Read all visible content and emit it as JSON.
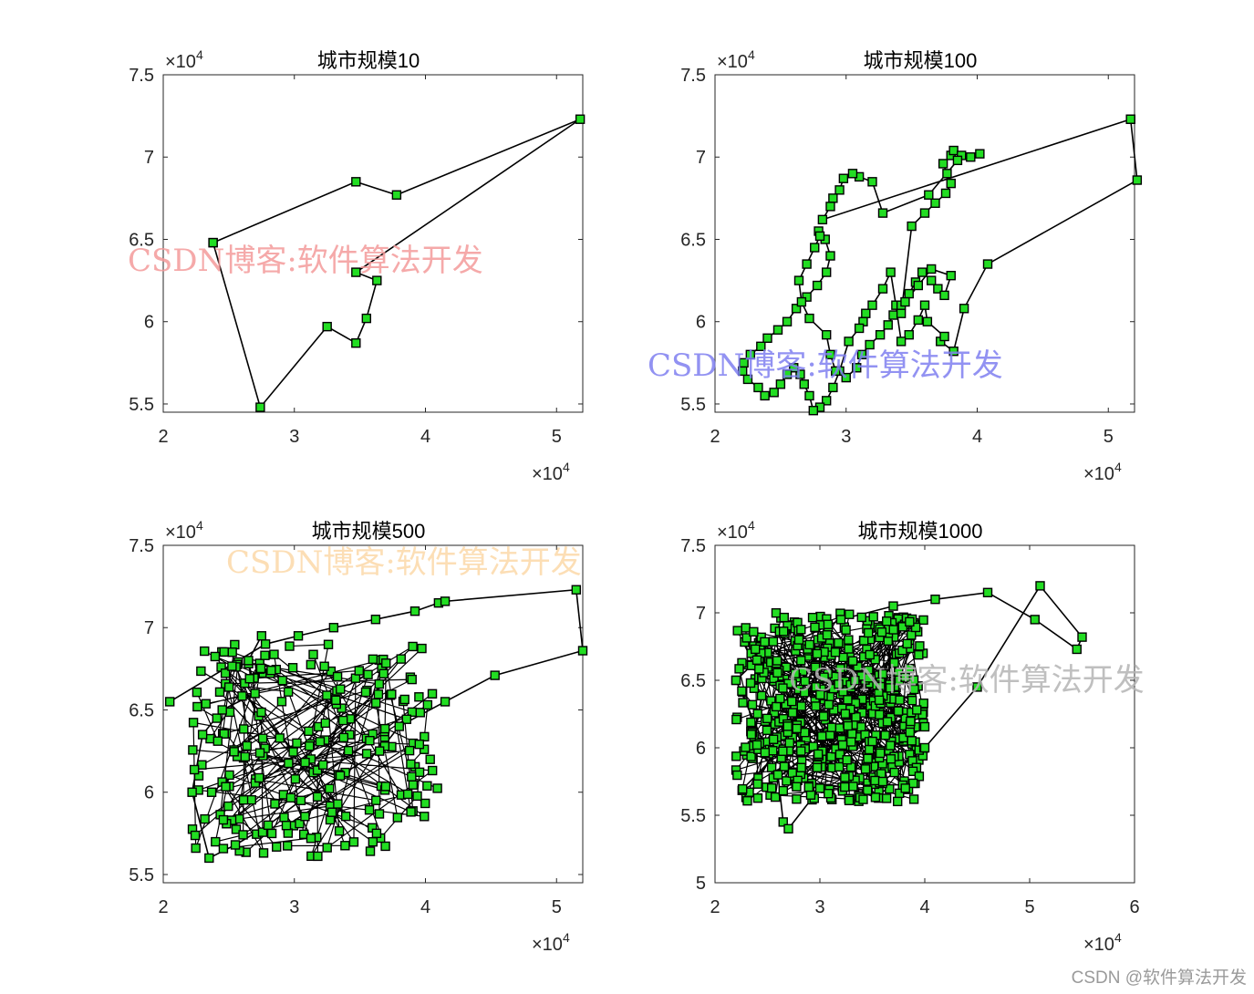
{
  "chart_data": [
    {
      "type": "line",
      "title": "城市规模10",
      "xlim": [
        2,
        5.2
      ],
      "ylim": [
        5.45,
        7.5
      ],
      "xticks": [
        "2",
        "3",
        "4",
        "5"
      ],
      "xtick_values": [
        2,
        3,
        4,
        5
      ],
      "yticks": [
        "5.5",
        "6",
        "6.5",
        "7",
        "7.5"
      ],
      "ytick_values": [
        5.5,
        6,
        6.5,
        7,
        7.5
      ],
      "x_exponent": "×10",
      "y_exponent": "×10",
      "exponent_power": "4",
      "marker": "square",
      "marker_color": "#22dd22",
      "line_color": "#000000",
      "route_x": [
        2.38,
        3.47,
        3.78,
        5.18,
        3.47,
        3.63,
        3.55,
        3.47,
        3.25,
        2.74,
        2.38
      ],
      "route_y": [
        6.48,
        6.85,
        6.77,
        7.23,
        6.3,
        6.25,
        6.02,
        5.87,
        5.97,
        5.48,
        6.48
      ],
      "watermark": {
        "text": "CSDN博客:软件算法开发",
        "color": "#f39a9a"
      }
    },
    {
      "type": "line",
      "title": "城市规模100",
      "xlim": [
        2,
        5.2
      ],
      "ylim": [
        5.45,
        7.5
      ],
      "xticks": [
        "2",
        "3",
        "4",
        "5"
      ],
      "xtick_values": [
        2,
        3,
        4,
        5
      ],
      "yticks": [
        "5.5",
        "6",
        "6.5",
        "7",
        "7.5"
      ],
      "ytick_values": [
        5.5,
        6,
        6.5,
        7,
        7.5
      ],
      "x_exponent": "×10",
      "y_exponent": "×10",
      "exponent_power": "4",
      "marker": "square",
      "marker_color": "#22dd22",
      "line_color": "#000000",
      "route_x": [
        5.17,
        5.22,
        4.08,
        3.9,
        3.82,
        3.72,
        3.75,
        3.62,
        3.6,
        3.55,
        3.48,
        3.42,
        3.38,
        3.34,
        3.28,
        3.2,
        3.15,
        3.13,
        3.1,
        3.02,
        2.95,
        2.9,
        2.85,
        2.8,
        2.75,
        2.72,
        2.68,
        2.65,
        2.6,
        2.55,
        2.5,
        2.45,
        2.38,
        2.33,
        2.25,
        2.21,
        2.22,
        2.27,
        2.35,
        2.4,
        2.48,
        2.55,
        2.62,
        2.7,
        2.78,
        2.85,
        2.88,
        2.84,
        2.79,
        2.8,
        2.76,
        2.7,
        2.64,
        2.66,
        2.72,
        2.85,
        2.88,
        2.92,
        3.0,
        3.08,
        3.12,
        3.18,
        3.26,
        3.32,
        3.36,
        3.42,
        3.48,
        3.53,
        3.58,
        3.65,
        3.7,
        3.75,
        3.8,
        3.65,
        3.55,
        3.45,
        3.42,
        3.5,
        3.6,
        3.68,
        3.76,
        3.8,
        3.77,
        3.74,
        3.8,
        3.82,
        3.88,
        3.95,
        4.02,
        3.85,
        3.63,
        3.28,
        3.2,
        3.1,
        3.05,
        2.98,
        2.95,
        2.9,
        2.88,
        2.82,
        5.17
      ],
      "route_y": [
        7.23,
        6.86,
        6.35,
        6.08,
        5.82,
        5.88,
        5.91,
        6.0,
        6.1,
        6.01,
        5.92,
        5.88,
        6.1,
        6.3,
        6.2,
        6.1,
        6.05,
        6.0,
        5.96,
        5.88,
        5.7,
        5.6,
        5.52,
        5.48,
        5.46,
        5.55,
        5.62,
        5.68,
        5.72,
        5.68,
        5.62,
        5.57,
        5.55,
        5.6,
        5.65,
        5.7,
        5.75,
        5.8,
        5.85,
        5.9,
        5.95,
        6.0,
        6.08,
        6.15,
        6.22,
        6.3,
        6.4,
        6.5,
        6.55,
        6.52,
        6.45,
        6.35,
        6.25,
        6.12,
        6.02,
        5.92,
        5.8,
        5.7,
        5.66,
        5.72,
        5.8,
        5.86,
        5.92,
        5.98,
        6.04,
        6.1,
        6.17,
        6.24,
        6.3,
        6.25,
        6.2,
        6.16,
        6.28,
        6.32,
        6.22,
        6.12,
        6.05,
        6.58,
        6.66,
        6.72,
        6.78,
        6.84,
        6.9,
        6.96,
        7.01,
        7.04,
        7.01,
        7.0,
        7.02,
        6.98,
        6.77,
        6.66,
        6.85,
        6.88,
        6.9,
        6.87,
        6.8,
        6.75,
        6.7,
        6.62,
        7.23
      ],
      "watermark": {
        "text": "CSDN博客:软件算法开发",
        "color": "#7f7ff0"
      }
    },
    {
      "type": "line",
      "title": "城市规模500",
      "xlim": [
        2,
        5.2
      ],
      "ylim": [
        5.45,
        7.5
      ],
      "xticks": [
        "2",
        "3",
        "4",
        "5"
      ],
      "xtick_values": [
        2,
        3,
        4,
        5
      ],
      "yticks": [
        "5.5",
        "6",
        "6.5",
        "7",
        "7.5"
      ],
      "ytick_values": [
        5.5,
        6,
        6.5,
        7,
        7.5
      ],
      "x_exponent": "×10",
      "y_exponent": "×10",
      "exponent_power": "4",
      "marker": "square",
      "marker_color": "#22dd22",
      "line_color": "#000000",
      "route_x": [
        2.05,
        2.78,
        3.03,
        3.3,
        3.62,
        3.92,
        4.1,
        4.15,
        5.15,
        5.2,
        4.53,
        4.15,
        3.8,
        3.65,
        3.35,
        3.05,
        2.8,
        2.55,
        2.35,
        2.22,
        2.3,
        2.45,
        2.7,
        2.65,
        2.75
      ],
      "route_y": [
        6.55,
        6.9,
        6.95,
        7.0,
        7.05,
        7.1,
        7.15,
        7.16,
        7.23,
        6.86,
        6.71,
        6.55,
        6.4,
        6.25,
        6.1,
        5.95,
        5.8,
        5.68,
        5.6,
        6.0,
        6.35,
        6.5,
        6.6,
        6.8,
        6.95
      ],
      "watermark": {
        "text": "CSDN博客:软件算法开发",
        "color": "#fbd8a8"
      }
    },
    {
      "type": "line",
      "title": "城市规模1000",
      "xlim": [
        2,
        6
      ],
      "ylim": [
        5,
        7.5
      ],
      "xticks": [
        "2",
        "3",
        "4",
        "5",
        "6"
      ],
      "xtick_values": [
        2,
        3,
        4,
        5,
        6
      ],
      "yticks": [
        "5",
        "5.5",
        "6",
        "6.5",
        "7",
        "7.5"
      ],
      "ytick_values": [
        5,
        5.5,
        6,
        6.5,
        7,
        7.5
      ],
      "x_exponent": "×10",
      "y_exponent": "×10",
      "exponent_power": "4",
      "marker": "square",
      "marker_color": "#22dd22",
      "line_color": "#000000",
      "route_x": [
        2.2,
        2.6,
        2.65,
        2.7,
        3.0,
        3.6,
        4.0,
        4.5,
        5.1,
        5.5,
        5.45,
        5.05,
        4.6,
        4.1,
        3.7,
        3.2,
        2.8,
        2.4,
        2.2
      ],
      "route_y": [
        6.5,
        5.8,
        5.45,
        5.4,
        5.7,
        5.75,
        6.0,
        6.45,
        7.2,
        6.82,
        6.73,
        6.95,
        7.15,
        7.1,
        7.05,
        6.95,
        6.8,
        6.65,
        6.5
      ],
      "watermark": {
        "text": "CSDN博客:软件算法开发",
        "color": "#b4b4b4"
      }
    }
  ],
  "footer": "CSDN @软件算法开发"
}
